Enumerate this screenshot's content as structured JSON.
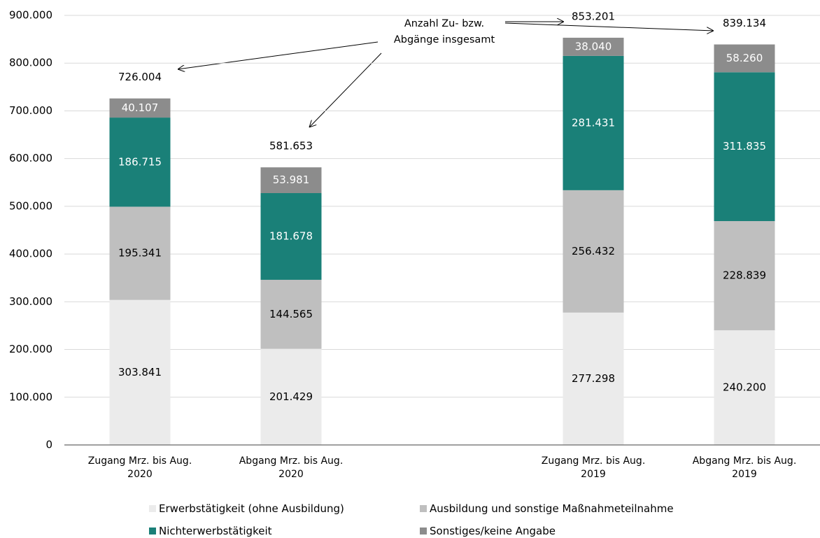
{
  "chart_data": {
    "type": "stacked_bar",
    "categories": [
      "Zugang Mrz. bis Aug. 2020",
      "Abgang Mrz. bis Aug. 2020",
      null,
      "Zugang Mrz. bis Aug. 2019",
      "Abgang Mrz. bis Aug. 2019"
    ],
    "series": [
      {
        "name": "Erwerbstätigkeit (ohne Ausbildung)",
        "color": "#ebebeb",
        "label_color": "#000000",
        "values": [
          303841,
          201429,
          null,
          277298,
          240200
        ],
        "value_labels": [
          "303.841",
          "201.429",
          null,
          "277.298",
          "240.200"
        ]
      },
      {
        "name": "Ausbildung und sonstige Maßnahmeteilnahme",
        "color": "#bfbfbf",
        "label_color": "#000000",
        "values": [
          195341,
          144565,
          null,
          256432,
          228839
        ],
        "value_labels": [
          "195.341",
          "144.565",
          null,
          "256.432",
          "228.839"
        ]
      },
      {
        "name": "Nichterwerbstätigkeit",
        "color": "#1a8078",
        "label_color": "#ffffff",
        "values": [
          186715,
          181678,
          null,
          281431,
          311835
        ],
        "value_labels": [
          "186.715",
          "181.678",
          null,
          "281.431",
          "311.835"
        ]
      },
      {
        "name": "Sonstiges/keine Angabe",
        "color": "#8c8c8c",
        "label_color": "#ffffff",
        "values": [
          40107,
          53981,
          null,
          38040,
          58260
        ],
        "value_labels": [
          "40.107",
          "53.981",
          null,
          "38.040",
          "58.260"
        ]
      }
    ],
    "totals": {
      "values": [
        726004,
        581653,
        null,
        853201,
        839134
      ],
      "value_labels": [
        "726.004",
        "581.653",
        null,
        "853.201",
        "839.134"
      ]
    },
    "annotation": "Anzahl Zu- bzw. Abgänge insgesamt",
    "ylim": [
      0,
      900000
    ],
    "yticks": [
      0,
      {
        "value": 100000,
        "label": "100.000"
      },
      {
        "value": 200000,
        "label": "200.000"
      },
      {
        "value": 300000,
        "label": "300.000"
      },
      {
        "value": 400000,
        "label": "400.000"
      },
      {
        "value": 500000,
        "label": "500.000"
      },
      {
        "value": 600000,
        "label": "600.000"
      },
      {
        "value": 700000,
        "label": "700.000"
      },
      {
        "value": 800000,
        "label": "800.000"
      },
      {
        "value": 900000,
        "label": "900.000"
      }
    ],
    "grid": true
  }
}
